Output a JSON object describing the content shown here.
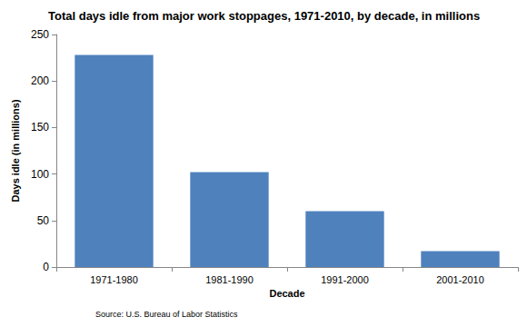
{
  "chart_data": {
    "type": "bar",
    "title": "Total days idle from major work stoppages, 1971-2010, by decade, in millions",
    "x_label": "Decade",
    "y_label": "Days idle (in millions)",
    "source": "Source: U.S. Bureau of Labor Statistics",
    "categories": [
      "1971-1980",
      "1981-1990",
      "1991-2000",
      "2001-2010"
    ],
    "values": [
      228,
      102,
      60,
      17
    ],
    "color": "#4f81bd",
    "ylim": [
      0,
      250
    ],
    "yticks": [
      0,
      50,
      100,
      150,
      200,
      250
    ],
    "grid": false
  }
}
